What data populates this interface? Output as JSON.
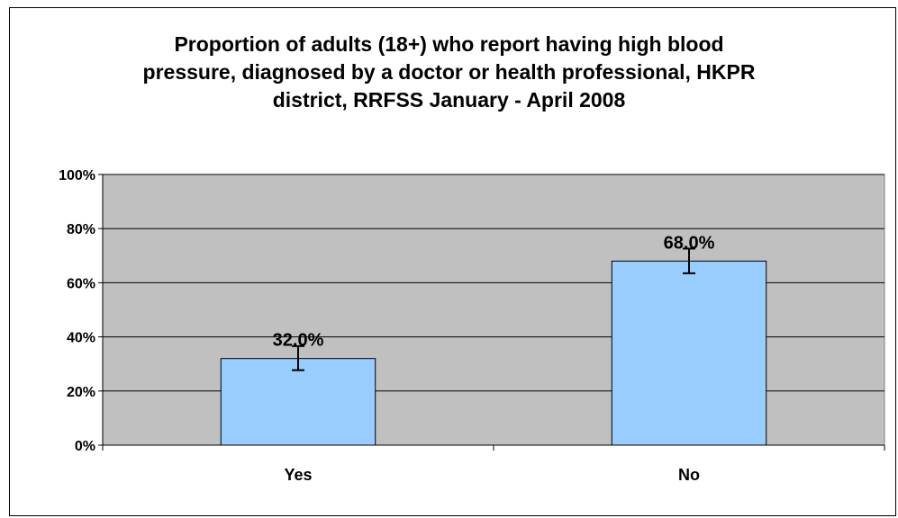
{
  "chart_data": {
    "type": "bar",
    "title_lines": [
      "Proportion of adults (18+) who report having high blood",
      "pressure, diagnosed by a doctor or health professional, HKPR",
      "district, RRFSS January - April 2008"
    ],
    "categories": [
      "Yes",
      "No"
    ],
    "values": [
      32.0,
      68.0
    ],
    "data_labels": [
      "32.0%",
      "68.0%"
    ],
    "error_bars": [
      {
        "low": 27.7,
        "high": 36.6
      },
      {
        "low": 63.5,
        "high": 72.6
      }
    ],
    "y_ticks": [
      0,
      20,
      40,
      60,
      80,
      100
    ],
    "y_tick_labels": [
      "0%",
      "20%",
      "40%",
      "60%",
      "80%",
      "100%"
    ],
    "ylim": [
      0,
      100
    ],
    "grid": true,
    "legend": "none",
    "colors": {
      "plot_background": "#c0c0c0",
      "bar_fill": "#99ccff",
      "bar_border": "#000000",
      "gridline": "#000000"
    }
  }
}
